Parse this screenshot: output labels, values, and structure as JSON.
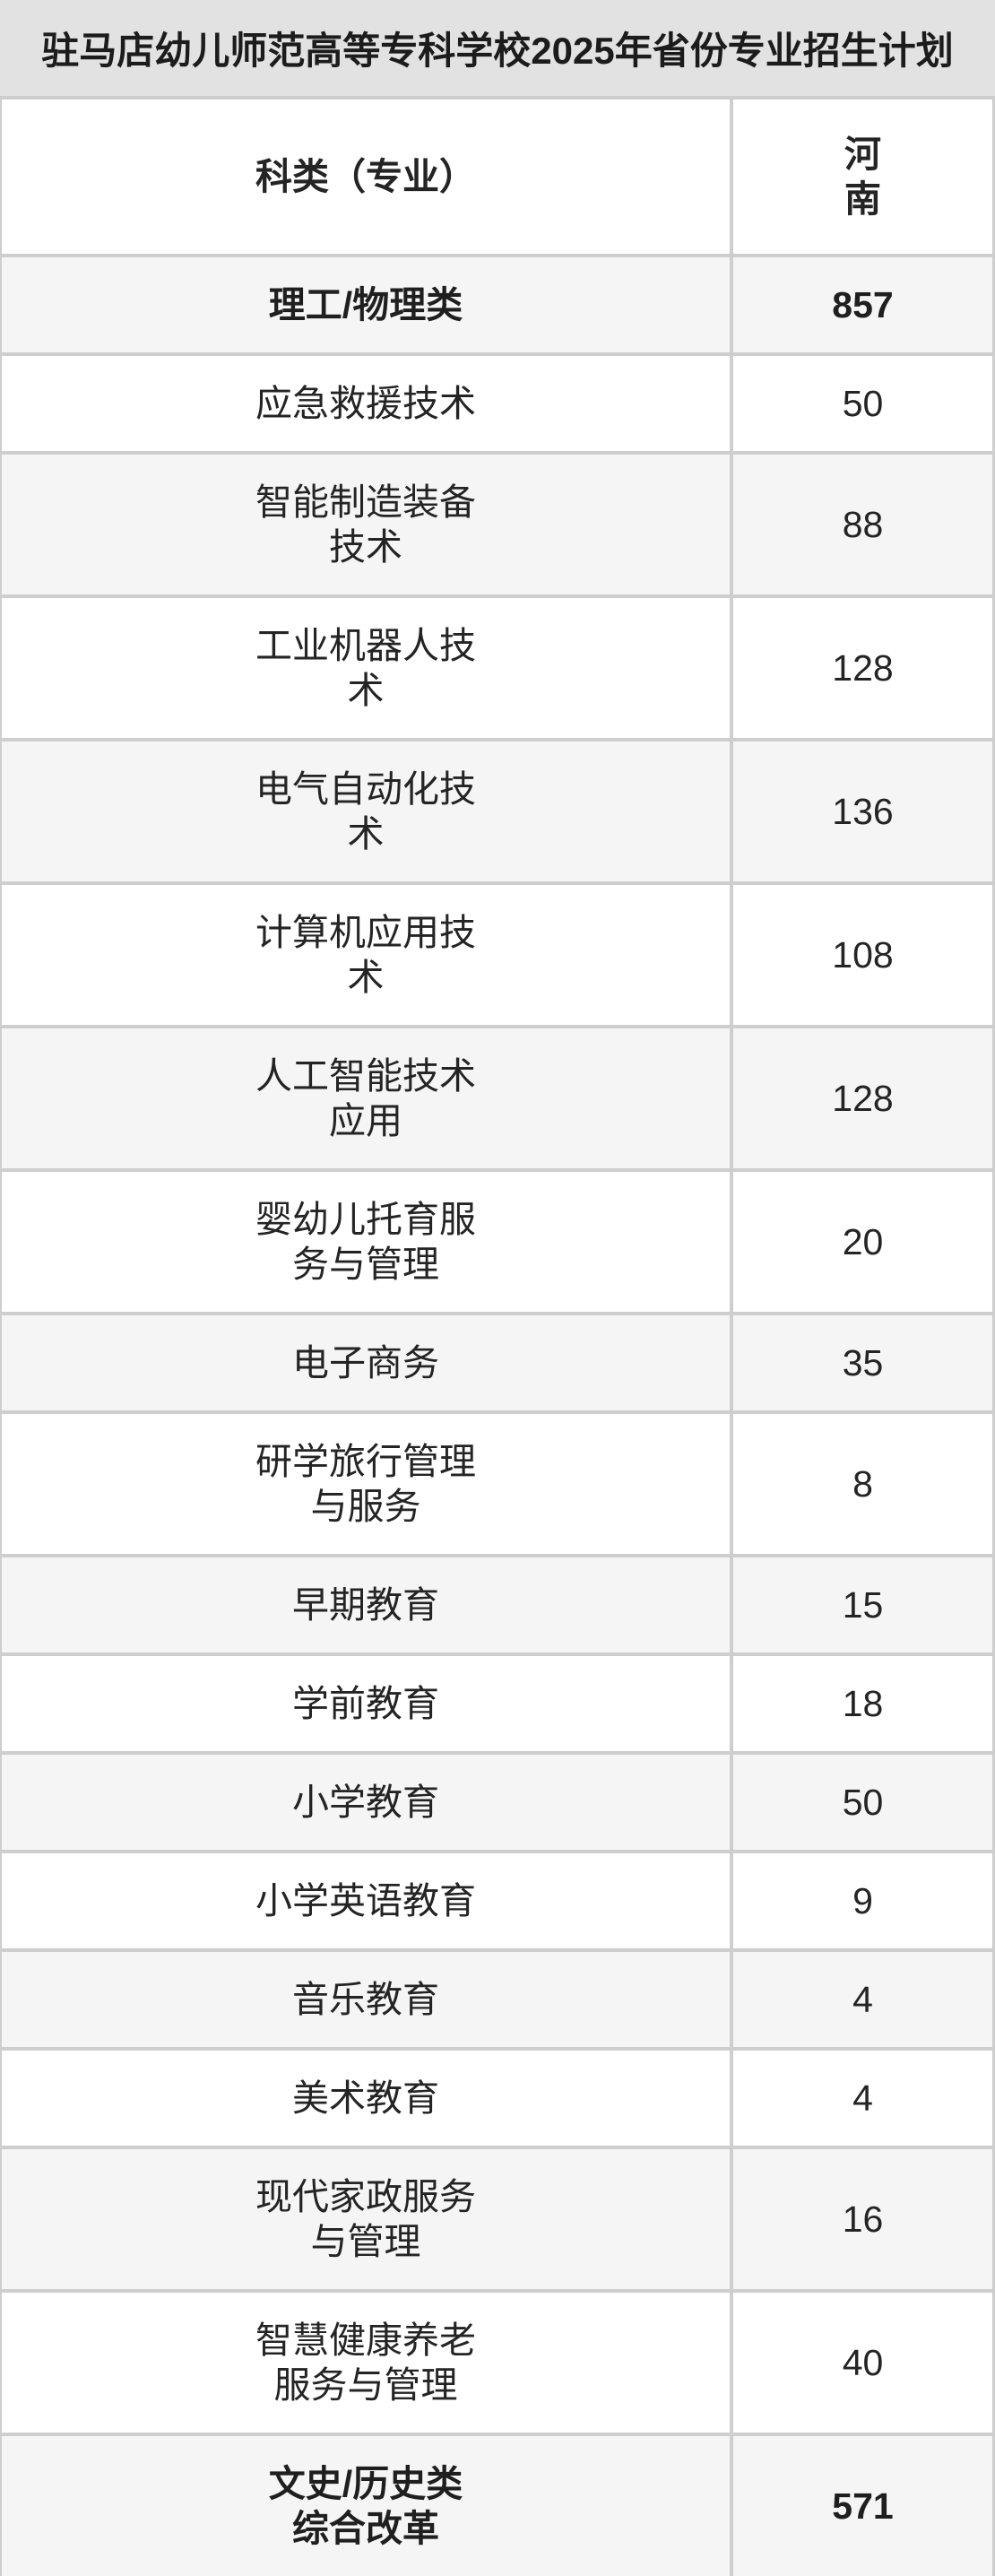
{
  "page": {
    "title": "驻马店幼儿师范高等专科学校2025年省份专业招生计划"
  },
  "table": {
    "header": {
      "category_label": "科类（专业）",
      "province_label": "河南"
    },
    "rows": [
      {
        "label": "理工/物理类",
        "value": 857,
        "bold": true
      },
      {
        "label": "应急救援技术",
        "value": 50,
        "bold": false
      },
      {
        "label": "智能制造装备技术",
        "value": 88,
        "bold": false
      },
      {
        "label": "工业机器人技术",
        "value": 128,
        "bold": false
      },
      {
        "label": "电气自动化技术",
        "value": 136,
        "bold": false
      },
      {
        "label": "计算机应用技术",
        "value": 108,
        "bold": false
      },
      {
        "label": "人工智能技术应用",
        "value": 128,
        "bold": false
      },
      {
        "label": "婴幼儿托育服务与管理",
        "value": 20,
        "bold": false
      },
      {
        "label": "电子商务",
        "value": 35,
        "bold": false
      },
      {
        "label": "研学旅行管理与服务",
        "value": 8,
        "bold": false
      },
      {
        "label": "早期教育",
        "value": 15,
        "bold": false
      },
      {
        "label": "学前教育",
        "value": 18,
        "bold": false
      },
      {
        "label": "小学教育",
        "value": 50,
        "bold": false
      },
      {
        "label": "小学英语教育",
        "value": 9,
        "bold": false
      },
      {
        "label": "音乐教育",
        "value": 4,
        "bold": false
      },
      {
        "label": "美术教育",
        "value": 4,
        "bold": false
      },
      {
        "label": "现代家政服务与管理",
        "value": 16,
        "bold": false
      },
      {
        "label": "智慧健康养老服务与管理",
        "value": 40,
        "bold": false
      },
      {
        "label": "文史/历史类综合改革",
        "value": 571,
        "bold": true
      }
    ]
  },
  "colors": {
    "title_bg": "#e2e2e2",
    "shaded_row_bg": "#f5f5f5",
    "grid_line": "#cecece",
    "text": "#242424"
  }
}
